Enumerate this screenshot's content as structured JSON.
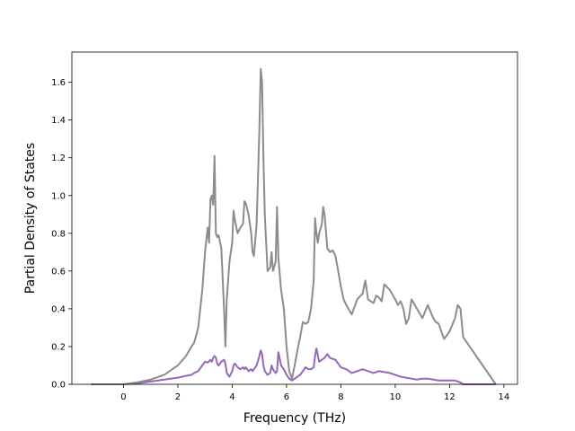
{
  "chart_data": {
    "type": "line",
    "xlabel": "Frequency (THz)",
    "ylabel": "Partial Density of States",
    "xlim": [
      -1.9,
      14.5
    ],
    "ylim": [
      0,
      1.76
    ],
    "xticks": [
      0,
      2,
      4,
      6,
      8,
      10,
      12,
      14
    ],
    "yticks": [
      0.0,
      0.2,
      0.4,
      0.6,
      0.8,
      1.0,
      1.2,
      1.4,
      1.6
    ],
    "grid": false,
    "legend": "none",
    "series": [
      {
        "color": "#9467bd",
        "x": [
          -1.2,
          0,
          0.5,
          1.0,
          1.5,
          2.0,
          2.3,
          2.5,
          2.6,
          2.75,
          2.9,
          3.0,
          3.1,
          3.2,
          3.25,
          3.3,
          3.35,
          3.4,
          3.45,
          3.5,
          3.6,
          3.7,
          3.75,
          3.8,
          3.9,
          4.0,
          4.05,
          4.1,
          4.2,
          4.3,
          4.4,
          4.45,
          4.5,
          4.6,
          4.7,
          4.75,
          4.8,
          4.9,
          5.0,
          5.05,
          5.1,
          5.15,
          5.2,
          5.3,
          5.4,
          5.45,
          5.5,
          5.6,
          5.65,
          5.7,
          5.8,
          5.9,
          6.0,
          6.1,
          6.2,
          6.3,
          6.4,
          6.5,
          6.6,
          6.7,
          6.8,
          6.9,
          7.0,
          7.05,
          7.1,
          7.2,
          7.3,
          7.4,
          7.5,
          7.6,
          7.8,
          8.0,
          8.2,
          8.4,
          8.6,
          8.8,
          9.0,
          9.2,
          9.4,
          9.6,
          9.8,
          10.0,
          10.2,
          10.4,
          10.6,
          10.8,
          11.0,
          11.2,
          11.4,
          11.6,
          11.8,
          12.0,
          12.2,
          12.4,
          12.5,
          13.7
        ],
        "y": [
          0,
          0,
          0.005,
          0.015,
          0.025,
          0.035,
          0.045,
          0.05,
          0.06,
          0.07,
          0.1,
          0.12,
          0.115,
          0.13,
          0.12,
          0.14,
          0.15,
          0.14,
          0.11,
          0.1,
          0.12,
          0.13,
          0.11,
          0.06,
          0.04,
          0.07,
          0.1,
          0.11,
          0.09,
          0.08,
          0.09,
          0.08,
          0.09,
          0.07,
          0.08,
          0.07,
          0.08,
          0.1,
          0.15,
          0.18,
          0.16,
          0.1,
          0.07,
          0.05,
          0.06,
          0.1,
          0.08,
          0.06,
          0.07,
          0.17,
          0.1,
          0.08,
          0.05,
          0.03,
          0.02,
          0.03,
          0.04,
          0.05,
          0.07,
          0.09,
          0.08,
          0.08,
          0.09,
          0.15,
          0.19,
          0.12,
          0.13,
          0.14,
          0.16,
          0.14,
          0.13,
          0.09,
          0.08,
          0.06,
          0.07,
          0.08,
          0.07,
          0.06,
          0.07,
          0.065,
          0.06,
          0.05,
          0.04,
          0.035,
          0.03,
          0.025,
          0.03,
          0.03,
          0.025,
          0.02,
          0.02,
          0.02,
          0.02,
          0.01,
          0,
          0
        ]
      },
      {
        "color": "#8c8c8c",
        "x": [
          -1.2,
          0,
          0.5,
          1.0,
          1.5,
          2.0,
          2.3,
          2.5,
          2.6,
          2.75,
          2.9,
          3.0,
          3.1,
          3.15,
          3.2,
          3.25,
          3.3,
          3.35,
          3.4,
          3.45,
          3.5,
          3.6,
          3.7,
          3.75,
          3.8,
          3.9,
          4.0,
          4.05,
          4.1,
          4.2,
          4.3,
          4.4,
          4.45,
          4.5,
          4.6,
          4.7,
          4.75,
          4.8,
          4.9,
          5.0,
          5.05,
          5.1,
          5.15,
          5.2,
          5.3,
          5.4,
          5.45,
          5.5,
          5.6,
          5.65,
          5.7,
          5.8,
          5.9,
          6.0,
          6.1,
          6.2,
          6.3,
          6.4,
          6.5,
          6.6,
          6.7,
          6.8,
          6.9,
          7.0,
          7.05,
          7.1,
          7.15,
          7.2,
          7.3,
          7.35,
          7.4,
          7.5,
          7.6,
          7.7,
          7.8,
          7.9,
          8.0,
          8.1,
          8.2,
          8.4,
          8.6,
          8.8,
          8.9,
          9.0,
          9.2,
          9.3,
          9.4,
          9.5,
          9.6,
          9.8,
          10.0,
          10.1,
          10.2,
          10.3,
          10.4,
          10.5,
          10.6,
          10.8,
          11.0,
          11.2,
          11.4,
          11.5,
          11.6,
          11.8,
          12.0,
          12.2,
          12.3,
          12.4,
          12.5,
          13.7
        ],
        "y": [
          0,
          0,
          0.01,
          0.025,
          0.05,
          0.1,
          0.15,
          0.2,
          0.22,
          0.3,
          0.5,
          0.7,
          0.83,
          0.75,
          0.98,
          1.0,
          0.95,
          1.21,
          0.8,
          0.78,
          0.79,
          0.72,
          0.4,
          0.2,
          0.45,
          0.65,
          0.75,
          0.92,
          0.87,
          0.8,
          0.83,
          0.85,
          0.97,
          0.96,
          0.9,
          0.8,
          0.7,
          0.68,
          0.85,
          1.35,
          1.67,
          1.6,
          1.2,
          0.9,
          0.6,
          0.62,
          0.7,
          0.6,
          0.65,
          0.94,
          0.67,
          0.5,
          0.4,
          0.2,
          0.07,
          0.03,
          0.1,
          0.18,
          0.25,
          0.33,
          0.32,
          0.33,
          0.4,
          0.55,
          0.88,
          0.8,
          0.75,
          0.8,
          0.85,
          0.94,
          0.9,
          0.72,
          0.7,
          0.71,
          0.68,
          0.6,
          0.52,
          0.45,
          0.42,
          0.37,
          0.45,
          0.48,
          0.55,
          0.45,
          0.43,
          0.47,
          0.46,
          0.44,
          0.53,
          0.5,
          0.45,
          0.42,
          0.44,
          0.4,
          0.32,
          0.35,
          0.45,
          0.4,
          0.35,
          0.42,
          0.35,
          0.33,
          0.32,
          0.24,
          0.28,
          0.35,
          0.42,
          0.4,
          0.25,
          0.0
        ]
      }
    ]
  }
}
